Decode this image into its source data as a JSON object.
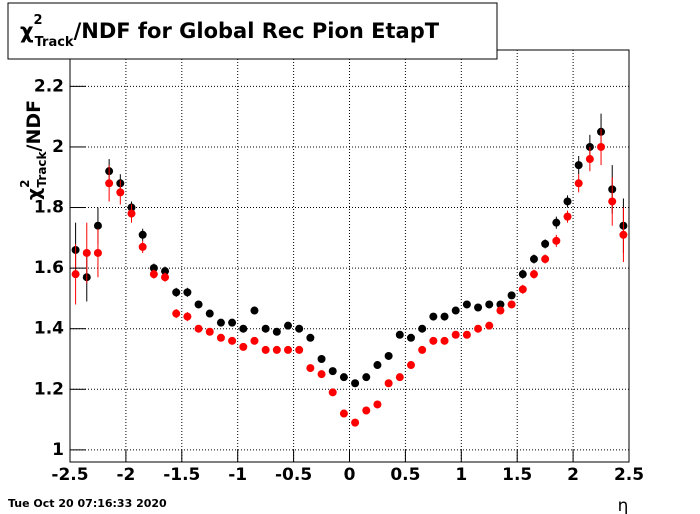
{
  "chart_data": {
    "type": "scatter",
    "title": {
      "symbol": "χ",
      "sup": "2",
      "sub": "Track",
      "text": "/NDF for Global Rec Pion EtapT"
    },
    "y_label": {
      "symbol": "χ",
      "sup": "2",
      "sub": "Track",
      "text": "/NDF"
    },
    "x_label": "η",
    "footer": "Tue Oct 20 07:16:33 2020",
    "x": [
      -2.45,
      -2.35,
      -2.25,
      -2.15,
      -2.05,
      -1.95,
      -1.85,
      -1.75,
      -1.65,
      -1.55,
      -1.45,
      -1.35,
      -1.25,
      -1.15,
      -1.05,
      -0.95,
      -0.85,
      -0.75,
      -0.65,
      -0.55,
      -0.45,
      -0.35,
      -0.25,
      -0.15,
      -0.05,
      0.05,
      0.15,
      0.25,
      0.35,
      0.45,
      0.55,
      0.65,
      0.75,
      0.85,
      0.95,
      1.05,
      1.15,
      1.25,
      1.35,
      1.45,
      1.55,
      1.65,
      1.75,
      1.85,
      1.95,
      2.05,
      2.15,
      2.25,
      2.35,
      2.45
    ],
    "series": [
      {
        "color": "#000000",
        "values": [
          1.66,
          1.57,
          1.74,
          1.92,
          1.88,
          1.8,
          1.71,
          1.6,
          1.59,
          1.52,
          1.52,
          1.48,
          1.45,
          1.42,
          1.42,
          1.4,
          1.46,
          1.4,
          1.39,
          1.41,
          1.4,
          1.37,
          1.3,
          1.26,
          1.24,
          1.22,
          1.24,
          1.28,
          1.31,
          1.38,
          1.37,
          1.4,
          1.44,
          1.44,
          1.46,
          1.48,
          1.47,
          1.48,
          1.48,
          1.51,
          1.58,
          1.63,
          1.68,
          1.75,
          1.82,
          1.94,
          2.0,
          2.05,
          1.86,
          1.74
        ],
        "errors": [
          0.09,
          0.08,
          0.06,
          0.04,
          0.03,
          0.02,
          0.02,
          0.015,
          0.015,
          0.015,
          0.015,
          0.012,
          0.012,
          0.012,
          0.012,
          0.012,
          0.012,
          0.012,
          0.012,
          0.012,
          0.012,
          0.012,
          0.012,
          0.012,
          0.012,
          0.012,
          0.012,
          0.012,
          0.012,
          0.012,
          0.012,
          0.012,
          0.012,
          0.012,
          0.012,
          0.012,
          0.012,
          0.012,
          0.012,
          0.012,
          0.015,
          0.015,
          0.015,
          0.02,
          0.02,
          0.03,
          0.04,
          0.06,
          0.08,
          0.09
        ]
      },
      {
        "color": "#ff0000",
        "values": [
          1.58,
          1.65,
          1.65,
          1.88,
          1.85,
          1.78,
          1.67,
          1.58,
          1.57,
          1.45,
          1.44,
          1.4,
          1.39,
          1.37,
          1.36,
          1.34,
          1.36,
          1.33,
          1.33,
          1.33,
          1.33,
          1.27,
          1.25,
          1.19,
          1.12,
          1.09,
          1.13,
          1.15,
          1.22,
          1.24,
          1.28,
          1.33,
          1.36,
          1.36,
          1.38,
          1.38,
          1.4,
          1.41,
          1.46,
          1.48,
          1.53,
          1.58,
          1.63,
          1.69,
          1.77,
          1.88,
          1.96,
          2.0,
          1.82,
          1.71
        ],
        "errors": [
          0.1,
          0.1,
          0.08,
          0.06,
          0.04,
          0.03,
          0.02,
          0.015,
          0.015,
          0.015,
          0.015,
          0.012,
          0.012,
          0.012,
          0.012,
          0.012,
          0.012,
          0.012,
          0.012,
          0.012,
          0.012,
          0.012,
          0.012,
          0.012,
          0.012,
          0.012,
          0.012,
          0.012,
          0.012,
          0.012,
          0.012,
          0.012,
          0.012,
          0.012,
          0.012,
          0.012,
          0.012,
          0.012,
          0.012,
          0.012,
          0.015,
          0.015,
          0.015,
          0.02,
          0.02,
          0.03,
          0.04,
          0.06,
          0.08,
          0.09
        ]
      }
    ],
    "xlim": [
      -2.5,
      2.5
    ],
    "ylim": [
      0.96,
      2.32
    ],
    "xticks": [
      -2.5,
      -2,
      -1.5,
      -1,
      -0.5,
      0,
      0.5,
      1,
      1.5,
      2,
      2.5
    ],
    "yticks": [
      1,
      1.2,
      1.4,
      1.6,
      1.8,
      2,
      2.2
    ],
    "grid": true
  }
}
